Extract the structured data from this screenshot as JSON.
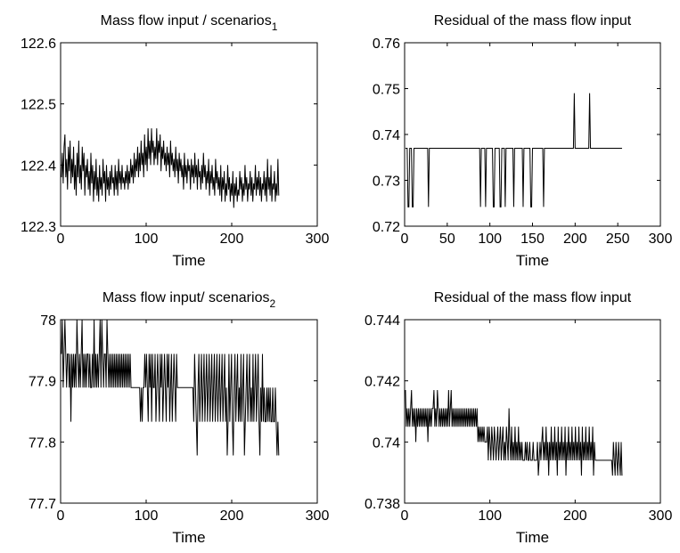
{
  "chart_data": [
    {
      "type": "line",
      "title": "Mass flow input / scenarios",
      "title_subscript": "1",
      "xlabel": "Time",
      "ylabel": "",
      "xlim": [
        0,
        300
      ],
      "ylim": [
        122.3,
        122.6
      ],
      "xticks": [
        "0",
        "100",
        "200",
        "300"
      ],
      "yticks": [
        "122.3",
        "122.4",
        "122.5",
        "122.6"
      ],
      "grid": false,
      "series": [
        {
          "x_start": 1,
          "x_end": 255,
          "values": [
            122.38,
            122.42,
            122.37,
            122.43,
            122.45,
            122.38,
            122.41,
            122.36,
            122.43,
            122.39,
            122.44,
            122.37,
            122.41,
            122.38,
            122.43,
            122.36,
            122.4,
            122.35,
            122.42,
            122.38,
            122.44,
            122.37,
            122.4,
            122.36,
            122.43,
            122.39,
            122.42,
            122.35,
            122.4,
            122.38,
            122.41,
            122.36,
            122.39,
            122.35,
            122.42,
            122.37,
            122.4,
            122.34,
            122.39,
            122.36,
            122.41,
            122.35,
            122.38,
            122.34,
            122.4,
            122.36,
            122.38,
            122.35,
            122.41,
            122.37,
            122.39,
            122.34,
            122.4,
            122.36,
            122.38,
            122.35,
            122.39,
            122.36,
            122.4,
            122.37,
            122.38,
            122.35,
            122.4,
            122.36,
            122.39,
            122.35,
            122.41,
            122.37,
            122.39,
            122.36,
            122.4,
            122.37,
            122.38,
            122.36,
            122.39,
            122.37,
            122.4,
            122.36,
            122.39,
            122.37,
            122.41,
            122.38,
            122.4,
            122.37,
            122.42,
            122.38,
            122.41,
            122.39,
            122.43,
            122.38,
            122.42,
            122.39,
            122.44,
            122.4,
            122.42,
            122.38,
            122.45,
            122.4,
            122.43,
            122.39,
            122.46,
            122.41,
            122.44,
            122.4,
            122.46,
            122.42,
            122.44,
            122.4,
            122.43,
            122.41,
            122.46,
            122.4,
            122.44,
            122.42,
            122.45,
            122.39,
            122.43,
            122.41,
            122.44,
            122.4,
            122.42,
            122.39,
            122.43,
            122.4,
            122.42,
            122.38,
            122.44,
            122.4,
            122.42,
            122.39,
            122.41,
            122.38,
            122.43,
            122.39,
            122.41,
            122.37,
            122.42,
            122.39,
            122.41,
            122.38,
            122.4,
            122.36,
            122.42,
            122.38,
            122.4,
            122.37,
            122.41,
            122.39,
            122.4,
            122.36,
            122.41,
            122.38,
            122.4,
            122.37,
            122.42,
            122.38,
            122.4,
            122.36,
            122.41,
            122.38,
            122.39,
            122.36,
            122.4,
            122.37,
            122.42,
            122.38,
            122.4,
            122.36,
            122.39,
            122.37,
            122.41,
            122.35,
            122.39,
            122.37,
            122.4,
            122.36,
            122.38,
            122.35,
            122.41,
            122.37,
            122.39,
            122.36,
            122.38,
            122.35,
            122.4,
            122.34,
            122.38,
            122.36,
            122.39,
            122.34,
            122.37,
            122.35,
            122.4,
            122.36,
            122.38,
            122.34,
            122.37,
            122.35,
            122.39,
            122.33,
            122.37,
            122.35,
            122.38,
            122.34,
            122.36,
            122.35,
            122.39,
            122.36,
            122.38,
            122.34,
            122.37,
            122.35,
            122.4,
            122.36,
            122.38,
            122.34,
            122.37,
            122.36,
            122.39,
            122.35,
            122.38,
            122.34,
            122.37,
            122.36,
            122.4,
            122.35,
            122.38,
            122.36,
            122.39,
            122.35,
            122.38,
            122.34,
            122.37,
            122.36,
            122.39,
            122.35,
            122.38,
            122.34,
            122.41,
            122.36,
            122.38,
            122.35,
            122.4,
            122.34,
            122.37,
            122.36,
            122.39,
            122.34,
            122.37,
            122.35,
            122.41,
            122.35
          ]
        }
      ]
    },
    {
      "type": "line",
      "title": "Residual of the mass flow input",
      "xlabel": "Time",
      "ylabel": "",
      "xlim": [
        0,
        300
      ],
      "ylim": [
        0.72,
        0.76
      ],
      "xticks": [
        "0",
        "50",
        "100",
        "150",
        "200",
        "250",
        "300"
      ],
      "yticks": [
        "0.72",
        "0.73",
        "0.74",
        "0.75",
        "0.76"
      ],
      "grid": false,
      "series": [
        {
          "x_start": 1,
          "x_end": 255,
          "baseline": 0.737,
          "dips_to": 0.7242,
          "dip_times": [
            4,
            5,
            9,
            10,
            28,
            89,
            95,
            104,
            105,
            112,
            113,
            118,
            128,
            139,
            148,
            149,
            163
          ],
          "spikes_to": 0.749,
          "spike_times": [
            199,
            217
          ]
        }
      ]
    },
    {
      "type": "line",
      "title": "Mass flow input/ scenarios",
      "title_subscript": "2",
      "xlabel": "Time",
      "ylabel": "",
      "xlim": [
        0,
        300
      ],
      "ylim": [
        77.7,
        78.0
      ],
      "xticks": [
        "0",
        "100",
        "200",
        "300"
      ],
      "yticks": [
        "77.7",
        "77.8",
        "77.9",
        "78"
      ],
      "grid": false,
      "series": [
        {
          "x_start": 1,
          "x_end": 255,
          "levels": [
            77.778,
            77.833,
            77.889,
            77.944,
            78.0
          ],
          "values": [
            77.944,
            78.0,
            77.889,
            77.944,
            78.0,
            77.944,
            77.889,
            77.944,
            77.944,
            77.889,
            77.944,
            77.833,
            77.944,
            77.889,
            77.944,
            77.889,
            77.944,
            77.889,
            78.0,
            77.944,
            77.889,
            77.944,
            77.889,
            77.944,
            78.0,
            77.889,
            77.944,
            77.889,
            77.944,
            77.889,
            77.944,
            77.944,
            77.889,
            77.944,
            77.889,
            77.889,
            77.944,
            77.889,
            78.0,
            77.889,
            77.944,
            77.889,
            77.944,
            77.889,
            77.944,
            78.0,
            77.889,
            78.0,
            77.944,
            77.889,
            77.944,
            77.944,
            77.889,
            78.0,
            77.944,
            77.889,
            77.944,
            77.889,
            77.944,
            77.889,
            77.944,
            77.889,
            77.944,
            77.889,
            77.944,
            77.889,
            77.944,
            77.889,
            77.944,
            77.889,
            77.944,
            77.889,
            77.944,
            77.889,
            77.944,
            77.889,
            77.944,
            77.889,
            77.944,
            77.889,
            77.944,
            77.889,
            77.889,
            77.889,
            77.889,
            77.889,
            77.889,
            77.889,
            77.889,
            77.889,
            77.889,
            77.889,
            77.833,
            77.889,
            77.833,
            77.889,
            77.889,
            77.944,
            77.889,
            77.944,
            77.889,
            77.833,
            77.944,
            77.889,
            77.944,
            77.833,
            77.944,
            77.889,
            77.889,
            77.944,
            77.833,
            77.889,
            77.944,
            77.889,
            77.833,
            77.944,
            77.889,
            77.944,
            77.833,
            77.889,
            77.944,
            77.889,
            77.833,
            77.944,
            77.889,
            77.944,
            77.833,
            77.889,
            77.944,
            77.833,
            77.889,
            77.944,
            77.889,
            77.833,
            77.944,
            77.889,
            77.889,
            77.889,
            77.889,
            77.889,
            77.889,
            77.889,
            77.889,
            77.889,
            77.889,
            77.889,
            77.889,
            77.889,
            77.889,
            77.889,
            77.889,
            77.889,
            77.889,
            77.889,
            77.833,
            77.944,
            77.889,
            77.833,
            77.778,
            77.889,
            77.944,
            77.833,
            77.889,
            77.944,
            77.833,
            77.889,
            77.944,
            77.833,
            77.889,
            77.944,
            77.833,
            77.889,
            77.944,
            77.833,
            77.889,
            77.944,
            77.833,
            77.889,
            77.944,
            77.833,
            77.889,
            77.944,
            77.833,
            77.889,
            77.944,
            77.833,
            77.889,
            77.944,
            77.833,
            77.889,
            77.944,
            77.833,
            77.889,
            77.778,
            77.833,
            77.944,
            77.833,
            77.889,
            77.944,
            77.833,
            77.778,
            77.889,
            77.944,
            77.833,
            77.889,
            77.944,
            77.833,
            77.889,
            77.833,
            77.944,
            77.833,
            77.889,
            77.944,
            77.778,
            77.833,
            77.889,
            77.944,
            77.833,
            77.889,
            77.944,
            77.833,
            77.889,
            77.833,
            77.944,
            77.833,
            77.889,
            77.944,
            77.833,
            77.889,
            77.944,
            77.833,
            77.778,
            77.889,
            77.833,
            77.944,
            77.833,
            77.889,
            77.833,
            77.833,
            77.889,
            77.833,
            77.889,
            77.833,
            77.889,
            77.833,
            77.833,
            77.889,
            77.833,
            77.833,
            77.889,
            77.833,
            77.778,
            77.833,
            77.778
          ]
        }
      ]
    },
    {
      "type": "line",
      "title": "Residual of the mass flow input",
      "xlabel": "Time",
      "ylabel": "",
      "xlim": [
        0,
        300
      ],
      "ylim": [
        0.738,
        0.744
      ],
      "xticks": [
        "0",
        "100",
        "200",
        "300"
      ],
      "yticks": [
        "0.738",
        "0.74",
        "0.742",
        "0.744"
      ],
      "grid": false,
      "series": [
        {
          "x_start": 1,
          "x_end": 255,
          "values": [
            0.7417,
            0.7405,
            0.7411,
            0.7405,
            0.7411,
            0.7405,
            0.7411,
            0.7417,
            0.7405,
            0.7411,
            0.7405,
            0.7411,
            0.74,
            0.7411,
            0.7405,
            0.7411,
            0.7405,
            0.7411,
            0.7405,
            0.7411,
            0.7405,
            0.7411,
            0.7405,
            0.7411,
            0.7405,
            0.7411,
            0.74,
            0.7411,
            0.7405,
            0.7411,
            0.7405,
            0.7411,
            0.7411,
            0.7417,
            0.7405,
            0.7411,
            0.7405,
            0.7417,
            0.7411,
            0.7405,
            0.7411,
            0.7405,
            0.7411,
            0.7405,
            0.7411,
            0.7405,
            0.7411,
            0.7405,
            0.7411,
            0.7405,
            0.7417,
            0.7405,
            0.7411,
            0.7417,
            0.7405,
            0.7411,
            0.7405,
            0.7411,
            0.7405,
            0.7411,
            0.7405,
            0.7411,
            0.7405,
            0.7411,
            0.7405,
            0.7411,
            0.7405,
            0.7411,
            0.7405,
            0.7411,
            0.7405,
            0.7411,
            0.7405,
            0.7411,
            0.7405,
            0.7411,
            0.7405,
            0.7411,
            0.7405,
            0.7411,
            0.7405,
            0.7411,
            0.7405,
            0.7411,
            0.74,
            0.7405,
            0.74,
            0.7405,
            0.74,
            0.7405,
            0.74,
            0.7405,
            0.74,
            0.74,
            0.74,
            0.7405,
            0.7394,
            0.7405,
            0.74,
            0.7394,
            0.7405,
            0.74,
            0.7394,
            0.7405,
            0.74,
            0.7394,
            0.74,
            0.7405,
            0.7394,
            0.74,
            0.7405,
            0.7394,
            0.74,
            0.7405,
            0.7394,
            0.74,
            0.7394,
            0.7405,
            0.74,
            0.7394,
            0.7411,
            0.74,
            0.7394,
            0.7405,
            0.7394,
            0.74,
            0.7394,
            0.7405,
            0.7394,
            0.74,
            0.7394,
            0.7405,
            0.7394,
            0.74,
            0.7394,
            0.74,
            0.7394,
            0.7394,
            0.7394,
            0.74,
            0.7394,
            0.74,
            0.7394,
            0.7394,
            0.74,
            0.7394,
            0.7394,
            0.7394,
            0.74,
            0.7394,
            0.7394,
            0.7394,
            0.7394,
            0.74,
            0.7389,
            0.7394,
            0.74,
            0.7394,
            0.74,
            0.7405,
            0.7394,
            0.74,
            0.7394,
            0.7405,
            0.7394,
            0.74,
            0.7389,
            0.74,
            0.7394,
            0.7405,
            0.7394,
            0.74,
            0.7394,
            0.7405,
            0.7394,
            0.74,
            0.7389,
            0.7405,
            0.7394,
            0.74,
            0.7394,
            0.7405,
            0.7394,
            0.74,
            0.7394,
            0.7405,
            0.7389,
            0.74,
            0.7394,
            0.7405,
            0.7394,
            0.74,
            0.7394,
            0.7405,
            0.7394,
            0.74,
            0.7394,
            0.7405,
            0.7394,
            0.74,
            0.7394,
            0.7405,
            0.7394,
            0.74,
            0.7389,
            0.7405,
            0.7394,
            0.74,
            0.7394,
            0.7405,
            0.7394,
            0.74,
            0.7394,
            0.7405,
            0.7394,
            0.74,
            0.7394,
            0.7405,
            0.7389,
            0.74,
            0.7394,
            0.7394,
            0.7394,
            0.7394,
            0.7394,
            0.7394,
            0.7394,
            0.7394,
            0.7394,
            0.7394,
            0.7394,
            0.7394,
            0.7394,
            0.7394,
            0.7394,
            0.7394,
            0.7394,
            0.7394,
            0.7394,
            0.7394,
            0.7389,
            0.74,
            0.7394,
            0.7389,
            0.74,
            0.7394,
            0.7389,
            0.74,
            0.7394,
            0.7389,
            0.74,
            0.7389
          ]
        }
      ]
    }
  ]
}
